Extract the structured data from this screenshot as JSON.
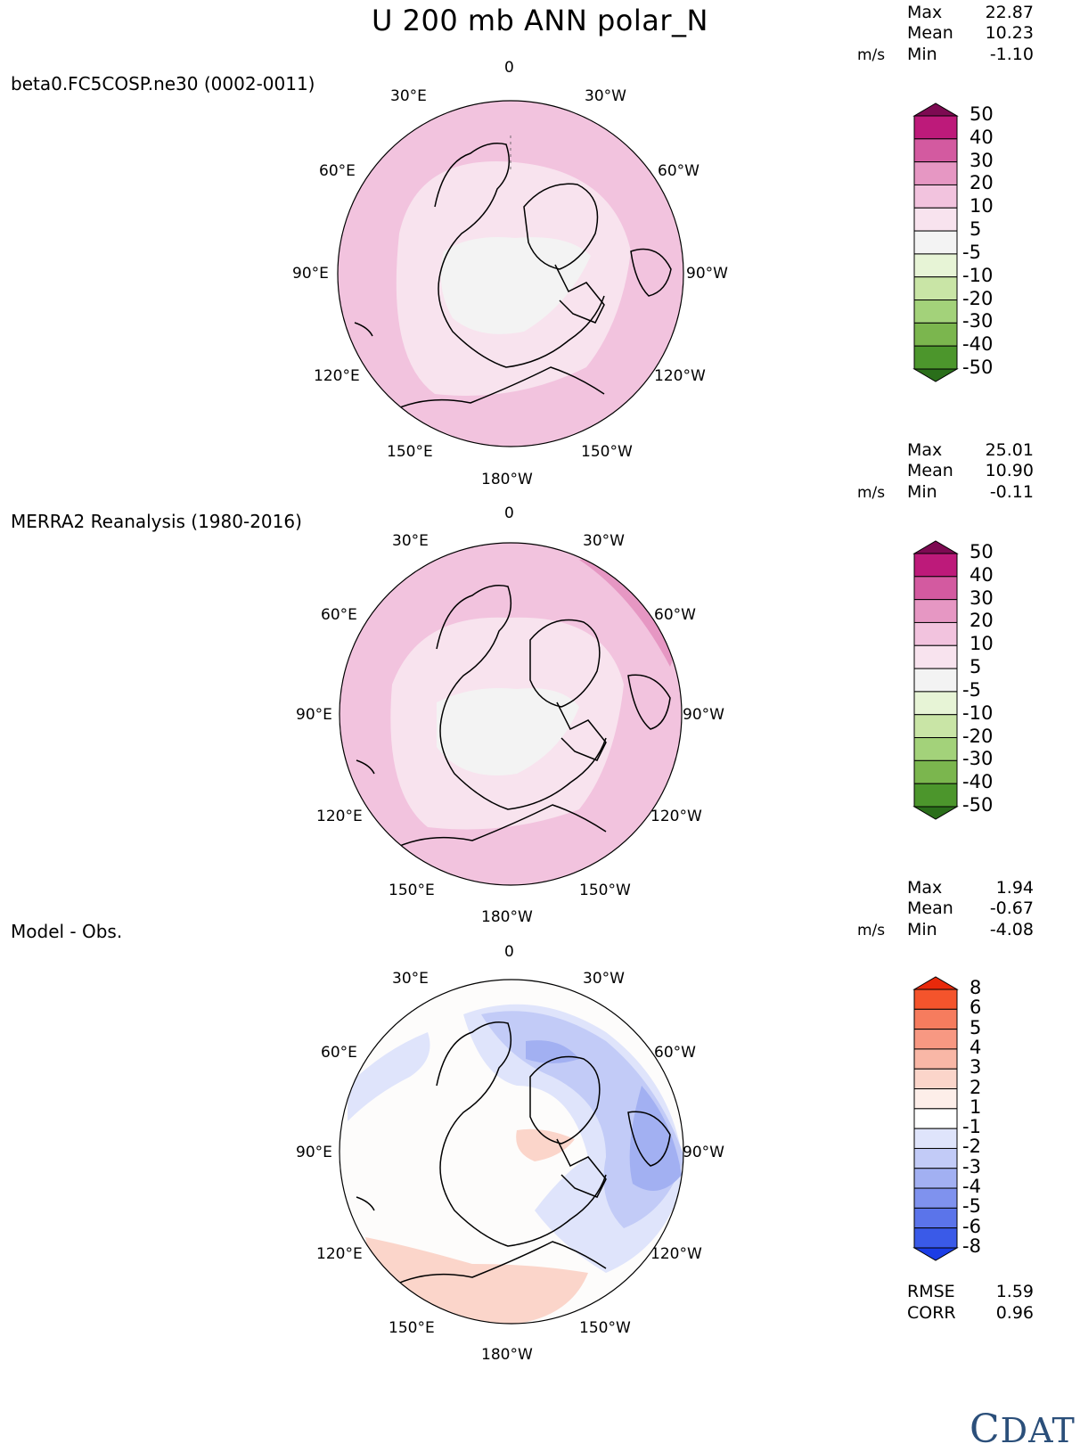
{
  "title": "U 200 mb ANN polar_N",
  "panels": [
    {
      "id": "test",
      "label": "beta0.FC5COSP.ne30 (0002-0011)",
      "stats": {
        "max_label": "Max",
        "max": "22.87",
        "mean_label": "Mean",
        "mean": "10.23",
        "units": "m/s",
        "min_label": "Min",
        "min": "-1.10"
      },
      "lon_labels": {
        "top": "0",
        "ne": "30°W",
        "nw": "30°E",
        "e1": "60°W",
        "w1": "60°E",
        "e2": "90°W",
        "w2": "90°E",
        "e3": "120°W",
        "w3": "120°E",
        "se": "150°W",
        "sw": "150°E",
        "bottom": "180°W"
      },
      "colorbar": {
        "levels": [
          "50",
          "40",
          "30",
          "20",
          "10",
          "5",
          "-5",
          "-10",
          "-20",
          "-30",
          "-40",
          "-50"
        ],
        "colors": [
          "#7d0a52",
          "#bd1a7a",
          "#d35aa0",
          "#e697c3",
          "#f2c3de",
          "#f8e3ee",
          "#f3f3f3",
          "#e7f4d6",
          "#c9e5a6",
          "#a3d27a",
          "#7bb64e",
          "#4c962c",
          "#2a6e1a"
        ]
      },
      "field": {
        "outer": "#f2c3de",
        "mid": "#f8e3ee",
        "core": "#f3f3f3",
        "accent": "#e697c3"
      }
    },
    {
      "id": "ref",
      "label": "MERRA2 Reanalysis (1980-2016)",
      "stats": {
        "max_label": "Max",
        "max": "25.01",
        "mean_label": "Mean",
        "mean": "10.90",
        "units": "m/s",
        "min_label": "Min",
        "min": "-0.11"
      },
      "lon_labels": {
        "top": "0",
        "ne": "30°W",
        "nw": "30°E",
        "e1": "60°W",
        "w1": "60°E",
        "e2": "90°W",
        "w2": "90°E",
        "e3": "120°W",
        "w3": "120°E",
        "se": "150°W",
        "sw": "150°E",
        "bottom": "180°W"
      },
      "colorbar": {
        "levels": [
          "50",
          "40",
          "30",
          "20",
          "10",
          "5",
          "-5",
          "-10",
          "-20",
          "-30",
          "-40",
          "-50"
        ],
        "colors": [
          "#7d0a52",
          "#bd1a7a",
          "#d35aa0",
          "#e697c3",
          "#f2c3de",
          "#f8e3ee",
          "#f3f3f3",
          "#e7f4d6",
          "#c9e5a6",
          "#a3d27a",
          "#7bb64e",
          "#4c962c",
          "#2a6e1a"
        ]
      },
      "field": {
        "outer": "#f2c3de",
        "mid": "#f8e3ee",
        "core": "#f3f3f3",
        "accent": "#e697c3"
      }
    },
    {
      "id": "diff",
      "label": "Model - Obs.",
      "stats": {
        "max_label": "Max",
        "max": "1.94",
        "mean_label": "Mean",
        "mean": "-0.67",
        "units": "m/s",
        "min_label": "Min",
        "min": "-4.08"
      },
      "lon_labels": {
        "top": "0",
        "ne": "30°W",
        "nw": "30°E",
        "e1": "60°W",
        "w1": "60°E",
        "e2": "90°W",
        "w2": "90°E",
        "e3": "120°W",
        "w3": "120°E",
        "se": "150°W",
        "sw": "150°E",
        "bottom": "180°W"
      },
      "colorbar": {
        "levels": [
          "8",
          "6",
          "5",
          "4",
          "3",
          "2",
          "1",
          "-1",
          "-2",
          "-3",
          "-4",
          "-5",
          "-6",
          "-8"
        ],
        "colors": [
          "#e8290b",
          "#f4542c",
          "#f67c5e",
          "#f79882",
          "#f9b7a6",
          "#fbd5ca",
          "#fdeee9",
          "#ffffff",
          "#dfe4fb",
          "#c2cbf7",
          "#a2b0f2",
          "#7f92ee",
          "#5b74ea",
          "#3a5ae8",
          "#1b3de6"
        ]
      },
      "field": {
        "outer": "#fdfcfb",
        "blue1": "#dfe4fb",
        "blue2": "#c2cbf7",
        "blue3": "#a2b0f2",
        "red1": "#fbd5ca"
      },
      "metrics": {
        "rmse_label": "RMSE",
        "rmse": "1.59",
        "corr_label": "CORR",
        "corr": "0.96"
      }
    }
  ],
  "logo": {
    "c": "C",
    "text": "DAT"
  }
}
